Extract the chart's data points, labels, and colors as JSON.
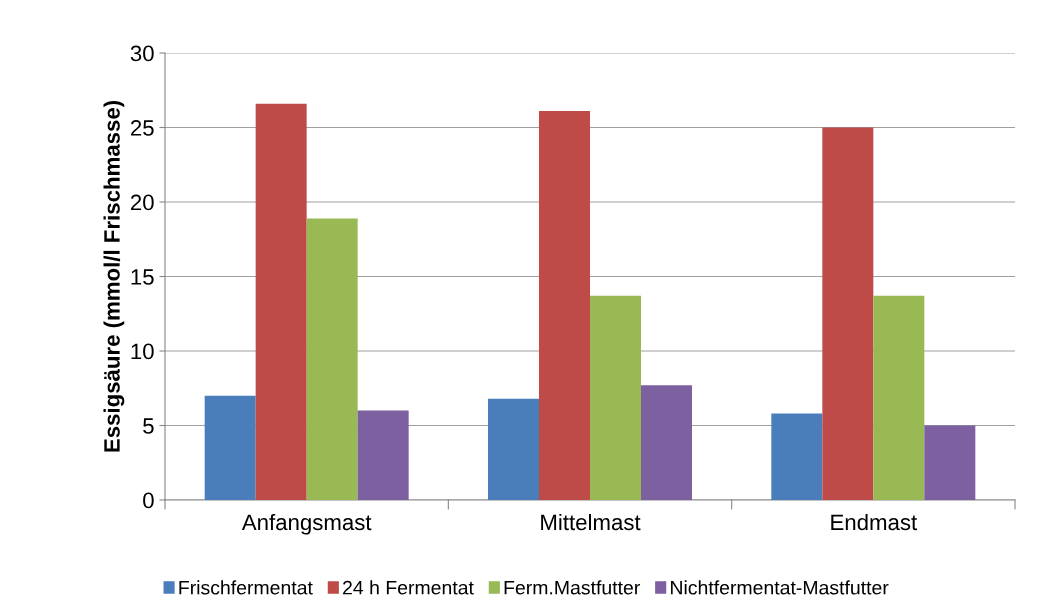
{
  "chart_data": {
    "type": "bar",
    "ylabel": "Essigsäure (mmol/l Frischmasse)",
    "categories": [
      "Anfangsmast",
      "Mittelmast",
      "Endmast"
    ],
    "series": [
      {
        "name": "Frischfermentat",
        "color": "#4a7ebb",
        "values": [
          7.0,
          6.8,
          5.8
        ]
      },
      {
        "name": "24 h Fermentat",
        "color": "#be4b48",
        "values": [
          26.6,
          26.1,
          25.0
        ]
      },
      {
        "name": "Ferm.Mastfutter",
        "color": "#98b954",
        "values": [
          18.9,
          13.7,
          13.7
        ]
      },
      {
        "name": "Nichtfermentat-Mastfutter",
        "color": "#7d60a0",
        "values": [
          6.0,
          7.7,
          5.0
        ]
      }
    ],
    "ylim": [
      0,
      30
    ],
    "yticks": [
      0,
      5,
      10,
      15,
      20,
      25,
      30
    ],
    "grid": "y",
    "legend": "bottom"
  }
}
